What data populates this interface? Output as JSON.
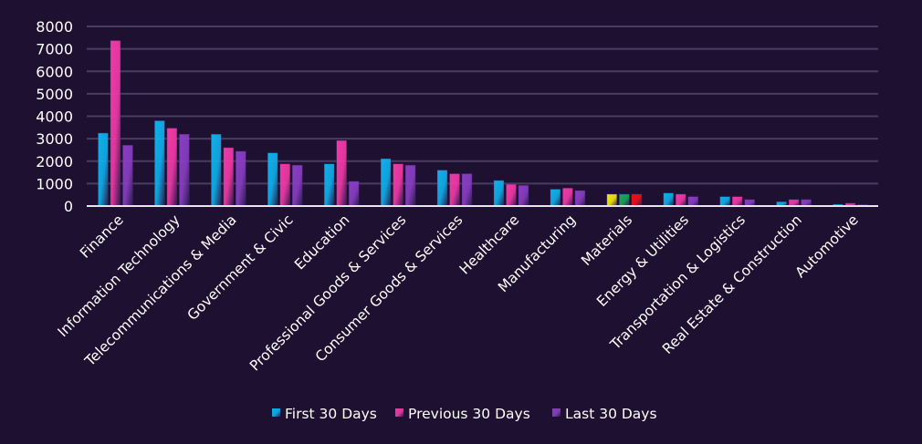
{
  "chart_data": {
    "type": "bar",
    "title": "",
    "xlabel": "",
    "ylabel": "",
    "ylim": [
      0,
      8000
    ],
    "yticks": [
      0,
      1000,
      2000,
      3000,
      4000,
      5000,
      6000,
      7000,
      8000
    ],
    "grid": true,
    "legend_position": "bottom",
    "categories": [
      "Finance",
      "Information Technology",
      "Telecommunications & Media",
      "Government & Civic",
      "Education",
      "Professional Goods & Services",
      "Consumer Goods &  Services",
      "Healthcare",
      "Manufacturing",
      "Materials",
      "Energy & Utilities",
      "Transportation & Logistics",
      "Real Estate & Construction",
      "Automotive"
    ],
    "series": [
      {
        "name": "First 30 Days",
        "color": "#0fb0ec",
        "values": [
          3250,
          3800,
          3200,
          2370,
          1880,
          2110,
          1600,
          1140,
          750,
          530,
          580,
          420,
          190,
          80
        ]
      },
      {
        "name": "Previous 30 Days",
        "color": "#f23aa7",
        "values": [
          7370,
          3470,
          2600,
          1880,
          2920,
          1880,
          1440,
          970,
          800,
          530,
          530,
          420,
          290,
          125
        ]
      },
      {
        "name": "Last 30 Days",
        "color": "#8a3ec4",
        "values": [
          2710,
          3200,
          2440,
          1820,
          1100,
          1820,
          1440,
          920,
          690,
          530,
          420,
          290,
          290,
          60
        ]
      }
    ],
    "special_colors": {
      "Materials": [
        "#f5e90f",
        "#1aa65a",
        "#f0101a"
      ]
    }
  }
}
